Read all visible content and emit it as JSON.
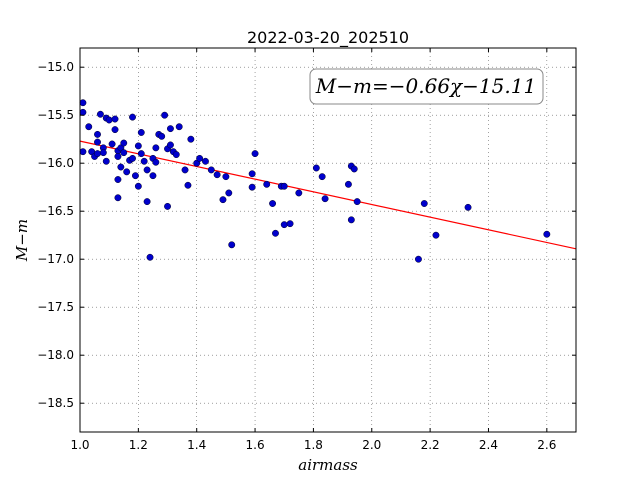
{
  "chart_data": {
    "type": "scatter",
    "title": "2022-03-20_202510",
    "xlabel": "airmass",
    "ylabel": "M−m",
    "xlim": [
      1.0,
      2.7
    ],
    "ylim": [
      -18.8,
      -14.8
    ],
    "y_inverted": true,
    "grid": true,
    "xticks": [
      "1.0",
      "1.2",
      "1.4",
      "1.6",
      "1.8",
      "2.0",
      "2.2",
      "2.4",
      "2.6"
    ],
    "yticks": [
      "−15.0",
      "−15.5",
      "−16.0",
      "−16.5",
      "−17.0",
      "−17.5",
      "−18.0",
      "−18.5"
    ],
    "annotation": "M−m=−0.66χ−15.11",
    "fit": {
      "slope": -0.66,
      "intercept": -15.11,
      "color": "#ff0000"
    },
    "point_color": "#0000cc",
    "series": [
      {
        "points": [
          [
            1.01,
            -15.37
          ],
          [
            1.01,
            -15.47
          ],
          [
            1.01,
            -15.88
          ],
          [
            1.03,
            -15.62
          ],
          [
            1.04,
            -15.88
          ],
          [
            1.05,
            -15.93
          ],
          [
            1.06,
            -15.7
          ],
          [
            1.06,
            -15.78
          ],
          [
            1.06,
            -15.9
          ],
          [
            1.07,
            -15.49
          ],
          [
            1.08,
            -15.84
          ],
          [
            1.08,
            -15.89
          ],
          [
            1.09,
            -15.53
          ],
          [
            1.09,
            -15.98
          ],
          [
            1.1,
            -15.55
          ],
          [
            1.11,
            -15.8
          ],
          [
            1.12,
            -15.54
          ],
          [
            1.12,
            -15.65
          ],
          [
            1.13,
            -15.87
          ],
          [
            1.13,
            -15.93
          ],
          [
            1.13,
            -16.17
          ],
          [
            1.13,
            -16.36
          ],
          [
            1.14,
            -15.84
          ],
          [
            1.14,
            -16.04
          ],
          [
            1.15,
            -15.79
          ],
          [
            1.15,
            -15.89
          ],
          [
            1.16,
            -16.09
          ],
          [
            1.17,
            -15.97
          ],
          [
            1.18,
            -15.52
          ],
          [
            1.18,
            -15.95
          ],
          [
            1.19,
            -16.13
          ],
          [
            1.2,
            -15.82
          ],
          [
            1.2,
            -16.24
          ],
          [
            1.21,
            -15.68
          ],
          [
            1.21,
            -15.9
          ],
          [
            1.22,
            -15.98
          ],
          [
            1.23,
            -16.07
          ],
          [
            1.23,
            -16.4
          ],
          [
            1.24,
            -16.98
          ],
          [
            1.25,
            -15.95
          ],
          [
            1.25,
            -16.13
          ],
          [
            1.26,
            -15.84
          ],
          [
            1.26,
            -15.99
          ],
          [
            1.27,
            -15.7
          ],
          [
            1.28,
            -15.72
          ],
          [
            1.29,
            -15.5
          ],
          [
            1.3,
            -15.85
          ],
          [
            1.3,
            -16.45
          ],
          [
            1.31,
            -15.64
          ],
          [
            1.31,
            -15.81
          ],
          [
            1.32,
            -15.88
          ],
          [
            1.33,
            -15.91
          ],
          [
            1.34,
            -15.62
          ],
          [
            1.36,
            -16.07
          ],
          [
            1.37,
            -16.23
          ],
          [
            1.38,
            -15.75
          ],
          [
            1.4,
            -16.0
          ],
          [
            1.41,
            -15.95
          ],
          [
            1.43,
            -15.98
          ],
          [
            1.45,
            -16.07
          ],
          [
            1.47,
            -16.12
          ],
          [
            1.49,
            -16.38
          ],
          [
            1.5,
            -16.14
          ],
          [
            1.51,
            -16.31
          ],
          [
            1.52,
            -16.85
          ],
          [
            1.59,
            -16.11
          ],
          [
            1.59,
            -16.25
          ],
          [
            1.6,
            -15.9
          ],
          [
            1.64,
            -16.22
          ],
          [
            1.66,
            -16.42
          ],
          [
            1.67,
            -16.73
          ],
          [
            1.69,
            -16.24
          ],
          [
            1.7,
            -16.24
          ],
          [
            1.7,
            -16.64
          ],
          [
            1.72,
            -16.63
          ],
          [
            1.75,
            -16.31
          ],
          [
            1.81,
            -16.05
          ],
          [
            1.83,
            -16.14
          ],
          [
            1.84,
            -16.37
          ],
          [
            1.92,
            -16.22
          ],
          [
            1.93,
            -16.03
          ],
          [
            1.93,
            -16.59
          ],
          [
            1.94,
            -16.06
          ],
          [
            1.95,
            -16.4
          ],
          [
            2.16,
            -17.0
          ],
          [
            2.18,
            -16.42
          ],
          [
            2.22,
            -16.75
          ],
          [
            2.33,
            -16.46
          ],
          [
            2.6,
            -16.74
          ]
        ]
      }
    ]
  }
}
